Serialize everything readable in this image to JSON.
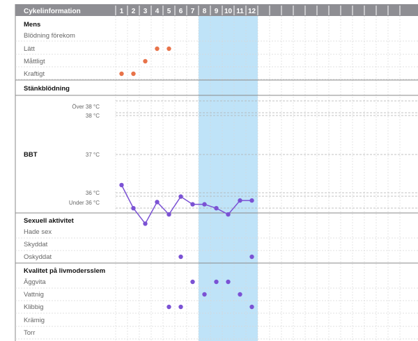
{
  "header": {
    "title": "Cykelinformation",
    "days": [
      "1",
      "2",
      "3",
      "4",
      "5",
      "6",
      "7",
      "8",
      "9",
      "10",
      "11",
      "12"
    ],
    "extra_day_columns": 12
  },
  "colors": {
    "header_bg": "#8e8e93",
    "header_text": "#ffffff",
    "highlight": "#bfe3f8",
    "mens_dot": "#e8734a",
    "purple": "#7b52d4",
    "grid_line": "#d6d6d6",
    "section_line": "#8a8a8a"
  },
  "highlight_days": {
    "from": 8,
    "to": 12
  },
  "sections": {
    "mens": {
      "title": "Mens",
      "rows": [
        "Blödning förekom",
        "Lätt",
        "Måttligt",
        "Kraftigt"
      ]
    },
    "spotting": {
      "title": "Stänkblödning"
    },
    "bbt": {
      "title": "BBT",
      "labels": {
        "above": "Över 38 °C",
        "t38": "38 °C",
        "t37": "37 °C",
        "t36": "36 °C",
        "below": "Under 36 °C"
      }
    },
    "sex": {
      "title": "Sexuell aktivitet",
      "rows": [
        "Hade sex",
        "Skyddat",
        "Oskyddat"
      ]
    },
    "mucus": {
      "title": "Kvalitet på livmodersslem",
      "rows": [
        "Äggvita",
        "Vattnig",
        "Klibbig",
        "Krämig",
        "Torr"
      ]
    }
  },
  "chart_data": {
    "type": "scatter",
    "x": [
      1,
      2,
      3,
      4,
      5,
      6,
      7,
      8,
      9,
      10,
      11,
      12
    ],
    "series": [
      {
        "name": "BBT",
        "type": "line",
        "unit": "°C",
        "values": [
          37.1,
          36.8,
          36.6,
          36.88,
          36.72,
          36.95,
          36.85,
          36.85,
          36.8,
          36.72,
          36.9,
          36.9
        ]
      },
      {
        "name": "Mens",
        "points": [
          {
            "day": 1,
            "level": "Kraftigt"
          },
          {
            "day": 2,
            "level": "Kraftigt"
          },
          {
            "day": 3,
            "level": "Måttligt"
          },
          {
            "day": 4,
            "level": "Lätt"
          },
          {
            "day": 5,
            "level": "Lätt"
          }
        ]
      },
      {
        "name": "Sexuell aktivitet",
        "points": [
          {
            "day": 6,
            "level": "Oskyddat"
          },
          {
            "day": 12,
            "level": "Oskyddat"
          }
        ]
      },
      {
        "name": "Kvalitet på livmodersslem",
        "points": [
          {
            "day": 7,
            "level": "Äggvita"
          },
          {
            "day": 9,
            "level": "Äggvita"
          },
          {
            "day": 10,
            "level": "Äggvita"
          },
          {
            "day": 8,
            "level": "Vattnig"
          },
          {
            "day": 11,
            "level": "Vattnig"
          },
          {
            "day": 5,
            "level": "Klibbig"
          },
          {
            "day": 6,
            "level": "Klibbig"
          },
          {
            "day": 12,
            "level": "Klibbig"
          }
        ]
      }
    ],
    "ylim": [
      36,
      38
    ]
  }
}
